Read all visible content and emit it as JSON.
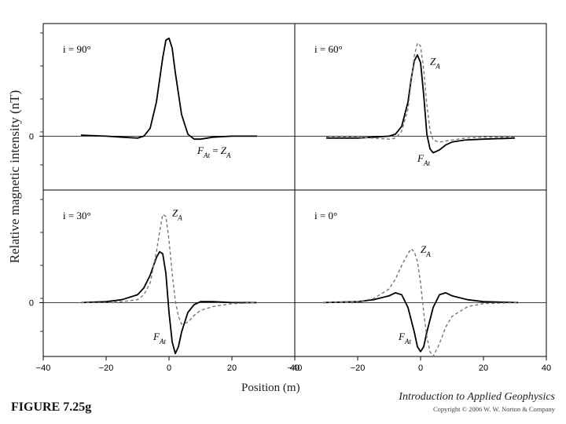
{
  "figure_label": "FIGURE 7.25g",
  "book_title": "Introduction to Applied Geophysics",
  "copyright": "Copyright © 2006 W. W. Norton & Company",
  "colors": {
    "total_field": "#000000",
    "vertical_component": "#777777",
    "axis": "#000000"
  },
  "chart_data": {
    "type": "line",
    "ylabel": "Relative magnetic intensity (nT)",
    "xlabel": "Position (m)",
    "x_ticks": [
      -40,
      -20,
      0,
      20,
      40
    ],
    "xlim": [
      -40,
      40
    ],
    "y_tick_label": "0",
    "panels": [
      {
        "id": "i90",
        "title": "i = 90°",
        "xlim": [
          -40,
          40
        ],
        "ylim": [
          -0.55,
          1.15
        ],
        "annotations": [
          {
            "text": "FAt = ZA",
            "x": 9,
            "y": -0.18
          }
        ],
        "series": [
          {
            "name": "FAt = ZA",
            "style": "solid",
            "x": [
              -28,
              -20,
              -15,
              -10,
              -8,
              -6,
              -4,
              -2,
              -1,
              0,
              1,
              2,
              4,
              6,
              8,
              10,
              14,
              20,
              28
            ],
            "y": [
              0.01,
              0.0,
              -0.01,
              -0.02,
              0.0,
              0.08,
              0.35,
              0.8,
              0.98,
              1.0,
              0.9,
              0.65,
              0.22,
              0.02,
              -0.03,
              -0.03,
              -0.01,
              0.0,
              0.0
            ]
          }
        ]
      },
      {
        "id": "i60",
        "title": "i = 60°",
        "xlim": [
          -40,
          40
        ],
        "ylim": [
          -0.55,
          1.15
        ],
        "annotations": [
          {
            "text": "ZA",
            "x": 3,
            "y": 0.73
          },
          {
            "text": "FAt",
            "x": -1,
            "y": -0.26
          }
        ],
        "series": [
          {
            "name": "FAt",
            "style": "solid",
            "x": [
              -30,
              -20,
              -15,
              -10,
              -8,
              -6,
              -4,
              -3,
              -2,
              -1,
              0,
              1,
              2,
              3,
              4,
              6,
              8,
              10,
              14,
              20,
              30
            ],
            "y": [
              -0.02,
              -0.02,
              -0.01,
              0.0,
              0.02,
              0.1,
              0.35,
              0.58,
              0.77,
              0.83,
              0.75,
              0.42,
              0.02,
              -0.13,
              -0.17,
              -0.14,
              -0.09,
              -0.06,
              -0.04,
              -0.03,
              -0.02
            ]
          },
          {
            "name": "ZA",
            "style": "dashed",
            "x": [
              -30,
              -20,
              -15,
              -10,
              -8,
              -6,
              -4,
              -3,
              -2,
              -1,
              0,
              1,
              2,
              3,
              4,
              6,
              8,
              10,
              14,
              20,
              30
            ],
            "y": [
              -0.01,
              -0.01,
              -0.02,
              -0.03,
              -0.02,
              0.05,
              0.28,
              0.55,
              0.82,
              0.95,
              0.92,
              0.68,
              0.32,
              0.06,
              -0.04,
              -0.06,
              -0.05,
              -0.04,
              -0.02,
              -0.01,
              -0.01
            ]
          }
        ]
      },
      {
        "id": "i30",
        "title": "i = 30°",
        "xlim": [
          -40,
          40
        ],
        "ylim": [
          -0.55,
          1.15
        ],
        "annotations": [
          {
            "text": "ZA",
            "x": 1,
            "y": 0.88
          },
          {
            "text": "FAt",
            "x": -5,
            "y": -0.38
          }
        ],
        "series": [
          {
            "name": "FAt",
            "style": "solid",
            "x": [
              -28,
              -20,
              -15,
              -10,
              -8,
              -6,
              -4,
              -3,
              -2,
              -1,
              0,
              1,
              2,
              3,
              4,
              6,
              8,
              10,
              14,
              20,
              28
            ],
            "y": [
              0.0,
              0.01,
              0.03,
              0.08,
              0.15,
              0.28,
              0.46,
              0.52,
              0.5,
              0.3,
              -0.1,
              -0.4,
              -0.52,
              -0.45,
              -0.3,
              -0.1,
              -0.02,
              0.01,
              0.01,
              0.0,
              0.0
            ]
          },
          {
            "name": "ZA",
            "style": "dashed",
            "x": [
              -28,
              -20,
              -15,
              -10,
              -8,
              -6,
              -4,
              -3,
              -2,
              -1,
              0,
              1,
              2,
              3,
              4,
              6,
              8,
              10,
              14,
              20,
              28
            ],
            "y": [
              0.0,
              0.0,
              0.01,
              0.03,
              0.08,
              0.2,
              0.52,
              0.72,
              0.9,
              0.88,
              0.64,
              0.3,
              0.02,
              -0.14,
              -0.22,
              -0.2,
              -0.13,
              -0.08,
              -0.04,
              -0.01,
              0.0
            ]
          }
        ]
      },
      {
        "id": "i0",
        "title": "i = 0°",
        "xlim": [
          -40,
          40
        ],
        "ylim": [
          -0.55,
          1.15
        ],
        "annotations": [
          {
            "text": "ZA",
            "x": 0,
            "y": 0.51
          },
          {
            "text": "FAt",
            "x": -7,
            "y": -0.38
          }
        ],
        "series": [
          {
            "name": "FAt",
            "style": "solid",
            "x": [
              -31,
              -20,
              -15,
              -10,
              -8,
              -6,
              -4,
              -2,
              -1,
              0,
              1,
              2,
              4,
              6,
              8,
              10,
              15,
              20,
              31
            ],
            "y": [
              0.0,
              0.01,
              0.03,
              0.07,
              0.1,
              0.08,
              -0.05,
              -0.3,
              -0.45,
              -0.5,
              -0.45,
              -0.3,
              -0.05,
              0.08,
              0.1,
              0.07,
              0.03,
              0.01,
              0.0
            ]
          },
          {
            "name": "ZA",
            "style": "dashed",
            "x": [
              -31,
              -20,
              -15,
              -10,
              -8,
              -6,
              -4,
              -3,
              -2,
              -1,
              0,
              1,
              2,
              3,
              4,
              6,
              8,
              10,
              15,
              20,
              31
            ],
            "y": [
              0.0,
              0.01,
              0.04,
              0.14,
              0.24,
              0.38,
              0.5,
              0.55,
              0.52,
              0.42,
              0.2,
              -0.1,
              -0.35,
              -0.5,
              -0.55,
              -0.42,
              -0.25,
              -0.14,
              -0.04,
              -0.01,
              0.0
            ]
          }
        ]
      }
    ]
  }
}
